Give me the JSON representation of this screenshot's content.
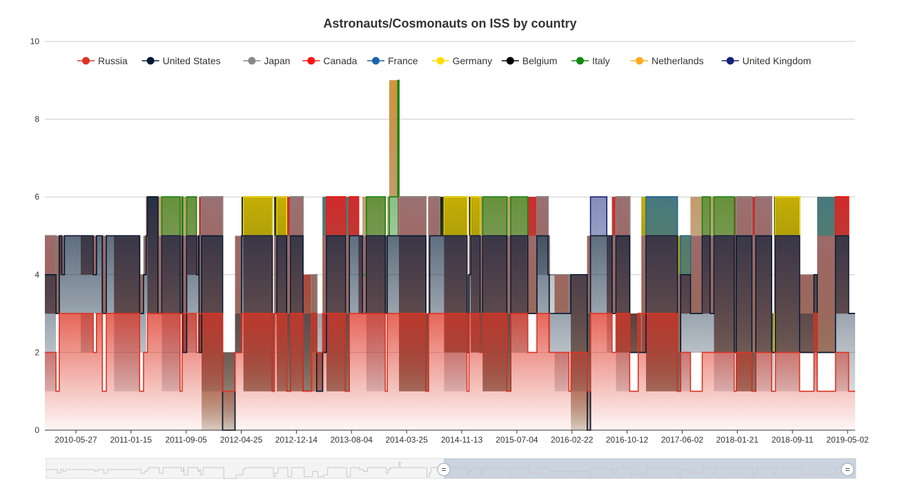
{
  "chart_data": {
    "type": "area",
    "title": "Astronauts/Cosmonauts on ISS by country",
    "xlabel": "",
    "ylabel": "",
    "ylim": [
      0,
      10
    ],
    "y_ticks": [
      "0",
      "2",
      "4",
      "6",
      "8",
      "10"
    ],
    "x_ticks": [
      "2010-05-27",
      "2011-01-15",
      "2011-09-05",
      "2012-04-25",
      "2012-12-14",
      "2013-08-04",
      "2014-03-25",
      "2014-11-13",
      "2015-07-04",
      "2016-02-22",
      "2016-10-12",
      "2017-06-02",
      "2018-01-21",
      "2018-09-11",
      "2019-05-02"
    ],
    "grid": true,
    "legend_position": "top",
    "stacked": true,
    "series": [
      {
        "name": "Russia",
        "color": "#dd3322",
        "values": [
          [
            0,
            2
          ],
          [
            17,
            1
          ],
          [
            22,
            3
          ],
          [
            74,
            2
          ],
          [
            79,
            3
          ],
          [
            88,
            1
          ],
          [
            94,
            3
          ],
          [
            145,
            1
          ],
          [
            151,
            2
          ],
          [
            157,
            3
          ],
          [
            207,
            1
          ],
          [
            210,
            3
          ],
          [
            232,
            2
          ],
          [
            235,
            3
          ],
          [
            272,
            1
          ],
          [
            291,
            2
          ],
          [
            301,
            3
          ],
          [
            348,
            1
          ],
          [
            351,
            3
          ],
          [
            370,
            1
          ],
          [
            376,
            3
          ],
          [
            395,
            1
          ],
          [
            408,
            3
          ],
          [
            416,
            2
          ],
          [
            425,
            3
          ],
          [
            460,
            1
          ],
          [
            466,
            3
          ],
          [
            521,
            1
          ],
          [
            524,
            3
          ],
          [
            583,
            1
          ],
          [
            587,
            3
          ],
          [
            646,
            1
          ],
          [
            649,
            3
          ],
          [
            666,
            2
          ],
          [
            670,
            3
          ],
          [
            707,
            1
          ],
          [
            713,
            3
          ],
          [
            739,
            2
          ],
          [
            753,
            3
          ],
          [
            772,
            2
          ],
          [
            802,
            1
          ],
          [
            805,
            2
          ],
          [
            830,
            1
          ],
          [
            835,
            3
          ],
          [
            868,
            2
          ],
          [
            874,
            3
          ],
          [
            895,
            1
          ],
          [
            908,
            3
          ],
          [
            968,
            1
          ],
          [
            973,
            2
          ],
          [
            988,
            1
          ],
          [
            1006,
            2
          ],
          [
            1055,
            1
          ],
          [
            1058,
            2
          ],
          [
            1082,
            1
          ],
          [
            1088,
            2
          ],
          [
            1112,
            1
          ],
          [
            1118,
            2
          ],
          [
            1155,
            1
          ],
          [
            1177,
            3
          ],
          [
            1182,
            1
          ],
          [
            1210,
            2
          ],
          [
            1230,
            1
          ],
          [
            1240,
            1
          ]
        ]
      },
      {
        "name": "United States",
        "color": "#001933",
        "values": [
          [
            0,
            2
          ],
          [
            26,
            1
          ],
          [
            30,
            2
          ],
          [
            55,
            2
          ],
          [
            87,
            2
          ],
          [
            106,
            2
          ],
          [
            155,
            3
          ],
          [
            173,
            0
          ],
          [
            179,
            2
          ],
          [
            211,
            -1
          ],
          [
            217,
            2
          ],
          [
            236,
            -1
          ],
          [
            240,
            2
          ],
          [
            272,
            -1
          ],
          [
            291,
            0
          ],
          [
            301,
            2
          ],
          [
            348,
            0
          ],
          [
            355,
            2
          ],
          [
            370,
            0
          ],
          [
            376,
            2
          ],
          [
            395,
            0
          ],
          [
            408,
            0
          ],
          [
            416,
            -1
          ],
          [
            431,
            2
          ],
          [
            460,
            0
          ],
          [
            466,
            2
          ],
          [
            486,
            0
          ],
          [
            492,
            2
          ],
          [
            527,
            2
          ],
          [
            542,
            2
          ],
          [
            583,
            0
          ],
          [
            589,
            2
          ],
          [
            646,
            1
          ],
          [
            652,
            2
          ],
          [
            666,
            0
          ],
          [
            670,
            2
          ],
          [
            707,
            0
          ],
          [
            713,
            2
          ],
          [
            739,
            1
          ],
          [
            753,
            2
          ],
          [
            770,
            1
          ],
          [
            780,
            1
          ],
          [
            802,
            2
          ],
          [
            830,
            -1
          ],
          [
            835,
            2
          ],
          [
            868,
            1
          ],
          [
            874,
            2
          ],
          [
            895,
            1
          ],
          [
            908,
            -1
          ],
          [
            920,
            2
          ],
          [
            968,
            0
          ],
          [
            973,
            2
          ],
          [
            988,
            2
          ],
          [
            1006,
            3
          ],
          [
            1018,
            1
          ],
          [
            1024,
            3
          ],
          [
            1055,
            1
          ],
          [
            1058,
            3
          ],
          [
            1082,
            0
          ],
          [
            1088,
            3
          ],
          [
            1112,
            1
          ],
          [
            1118,
            3
          ],
          [
            1155,
            1
          ],
          [
            1177,
            1
          ],
          [
            1182,
            1
          ],
          [
            1210,
            3
          ],
          [
            1230,
            2
          ],
          [
            1240,
            2
          ]
        ]
      },
      {
        "name": "Japan",
        "color": "#888888",
        "values": [
          [
            0,
            1
          ],
          [
            17,
            0
          ],
          [
            22,
            0
          ],
          [
            55,
            0
          ],
          [
            87,
            0
          ],
          [
            106,
            0
          ],
          [
            155,
            0
          ],
          [
            179,
            0
          ],
          [
            240,
            1
          ],
          [
            272,
            0
          ],
          [
            291,
            0
          ],
          [
            301,
            0
          ],
          [
            348,
            0
          ],
          [
            376,
            1
          ],
          [
            395,
            0
          ],
          [
            408,
            1
          ],
          [
            416,
            0
          ],
          [
            431,
            0
          ],
          [
            527,
            0
          ],
          [
            542,
            1
          ],
          [
            583,
            0
          ],
          [
            589,
            1
          ],
          [
            604,
            0
          ],
          [
            739,
            0
          ],
          [
            753,
            1
          ],
          [
            770,
            1
          ],
          [
            802,
            0
          ],
          [
            868,
            0
          ],
          [
            874,
            1
          ],
          [
            895,
            0
          ],
          [
            908,
            1
          ],
          [
            913,
            0
          ],
          [
            1055,
            0
          ],
          [
            1058,
            1
          ],
          [
            1082,
            0
          ],
          [
            1088,
            1
          ],
          [
            1112,
            0
          ],
          [
            1240,
            0
          ]
        ]
      },
      {
        "name": "Canada",
        "color": "#ff1111",
        "values": [
          [
            0,
            0
          ],
          [
            431,
            1
          ],
          [
            460,
            0
          ],
          [
            466,
            1
          ],
          [
            480,
            0
          ],
          [
            1210,
            1
          ],
          [
            1230,
            0
          ],
          [
            1240,
            0
          ]
        ]
      },
      {
        "name": "France",
        "color": "#1a66aa",
        "values": [
          [
            0,
            0
          ],
          [
            920,
            1
          ],
          [
            968,
            0
          ],
          [
            973,
            1
          ],
          [
            988,
            0
          ],
          [
            1240,
            0
          ]
        ]
      },
      {
        "name": "Germany",
        "color": "#ffdd00",
        "values": [
          [
            0,
            0
          ],
          [
            304,
            1
          ],
          [
            348,
            0
          ],
          [
            355,
            1
          ],
          [
            370,
            0
          ],
          [
            611,
            1
          ],
          [
            646,
            0
          ],
          [
            652,
            1
          ],
          [
            666,
            0
          ],
          [
            1116,
            1
          ],
          [
            1155,
            0
          ],
          [
            1240,
            0
          ]
        ]
      },
      {
        "name": "Belgium",
        "color": "#000000",
        "values": [
          [
            0,
            0
          ],
          [
            1240,
            0
          ]
        ]
      },
      {
        "name": "Italy",
        "color": "#118811",
        "values": [
          [
            0,
            0
          ],
          [
            179,
            1
          ],
          [
            211,
            0
          ],
          [
            217,
            1
          ],
          [
            232,
            0
          ],
          [
            486,
            1
          ],
          [
            521,
            0
          ],
          [
            527,
            1
          ],
          [
            540,
            4
          ],
          [
            542,
            0
          ],
          [
            670,
            1
          ],
          [
            707,
            0
          ],
          [
            713,
            1
          ],
          [
            739,
            0
          ],
          [
            1006,
            1
          ],
          [
            1018,
            0
          ],
          [
            1024,
            1
          ],
          [
            1055,
            0
          ],
          [
            1240,
            0
          ]
        ]
      },
      {
        "name": "Netherlands",
        "color": "#ffaa22",
        "values": [
          [
            0,
            0
          ],
          [
            1240,
            0
          ]
        ]
      },
      {
        "name": "United Kingdom",
        "color": "#112277",
        "values": [
          [
            0,
            0
          ],
          [
            835,
            1
          ],
          [
            860,
            0
          ],
          [
            1240,
            0
          ]
        ]
      }
    ]
  },
  "data_zoom": {
    "start_handle_label": "=",
    "end_handle_label": "="
  }
}
